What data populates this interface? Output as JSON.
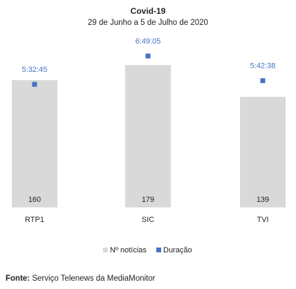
{
  "source": {
    "label": "Fonte:",
    "text": " Serviço Telenews da MediaMonitor"
  },
  "colors": {
    "bar": "#d9d9d9",
    "marker": "#4472c4",
    "text": "#222222"
  },
  "chart_data": {
    "type": "bar",
    "title": "Covid-19",
    "subtitle": "29 de Junho a 5 de Julho de 2020",
    "categories": [
      "RTP1",
      "SIC",
      "TVI"
    ],
    "series": [
      {
        "name": "Nº notícias",
        "type": "bar",
        "values": [
          160,
          179,
          139
        ],
        "labels": [
          "160",
          "179",
          "139"
        ]
      },
      {
        "name": "Duração",
        "type": "scatter",
        "values_seconds": [
          19965,
          24545,
          20558
        ],
        "labels": [
          "5:32:45",
          "6:49:05",
          "5:42:38"
        ]
      }
    ],
    "legend_position": "bottom",
    "grid": false
  }
}
